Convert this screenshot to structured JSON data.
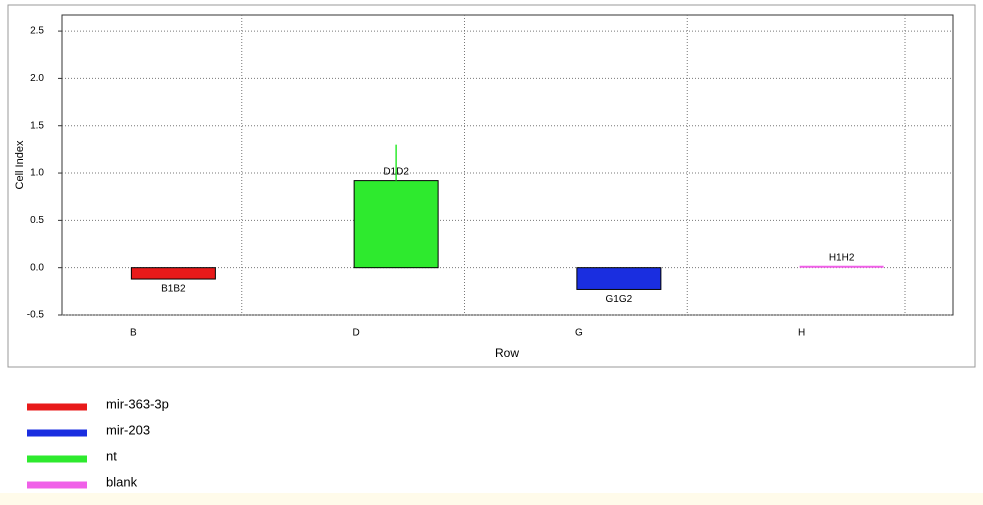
{
  "chart_data": {
    "type": "bar",
    "y_label": "Cell Index",
    "x_label": "Row",
    "categories": [
      "B",
      "D",
      "G",
      "H"
    ],
    "bar_labels": [
      "B1B2",
      "D1D2",
      "G1G2",
      "H1H2"
    ],
    "series": [
      {
        "name": "mir-363-3p",
        "color": "#e81a1a",
        "values": [
          -0.12,
          null,
          null,
          null
        ]
      },
      {
        "name": "mir-203",
        "color": "#1a2ee0",
        "values": [
          null,
          null,
          -0.23,
          null
        ]
      },
      {
        "name": "nt",
        "color": "#2eea2e",
        "values": [
          null,
          0.92,
          null,
          null
        ],
        "errors": [
          null,
          0.38,
          null,
          null
        ]
      },
      {
        "name": "blank",
        "color": "#f060e8",
        "values": [
          null,
          null,
          null,
          0.01
        ]
      }
    ],
    "ylim": [
      -0.5,
      2.67
    ],
    "yticks": [
      -0.5,
      {
        "value": 0,
        "label": "0.0"
      },
      0.5,
      {
        "value": 1,
        "label": "1.0"
      },
      1.5,
      {
        "value": 2,
        "label": "2.0"
      },
      2.5
    ],
    "grid": true
  }
}
